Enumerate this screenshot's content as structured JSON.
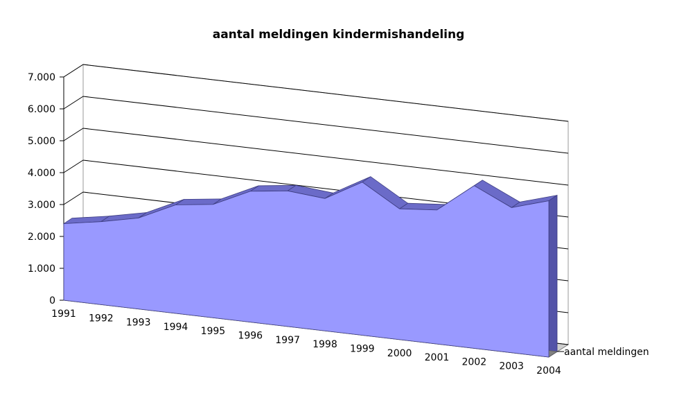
{
  "chart_data": {
    "type": "area",
    "title": "aantal meldingen kindermishandeling",
    "x": [
      "1991",
      "1992",
      "1993",
      "1994",
      "1995",
      "1996",
      "1997",
      "1998",
      "1999",
      "2000",
      "2001",
      "2002",
      "2003",
      "2004"
    ],
    "series": [
      {
        "name": "aantal meldingen",
        "values": [
          2400,
          2600,
          2850,
          3400,
          3550,
          4100,
          4250,
          4150,
          4800,
          4100,
          4200,
          5100,
          4550,
          4900
        ]
      }
    ],
    "yticks": [
      "0",
      "1.000",
      "2.000",
      "3.000",
      "4.000",
      "5.000",
      "6.000",
      "7.000"
    ],
    "ylim": [
      0,
      7000
    ],
    "grid": true,
    "three_d": true,
    "colors": {
      "front": "#9999ff",
      "top": "#6b6bc8",
      "side": "#5353a8",
      "floor": "#808080",
      "grid": "#000000"
    }
  }
}
